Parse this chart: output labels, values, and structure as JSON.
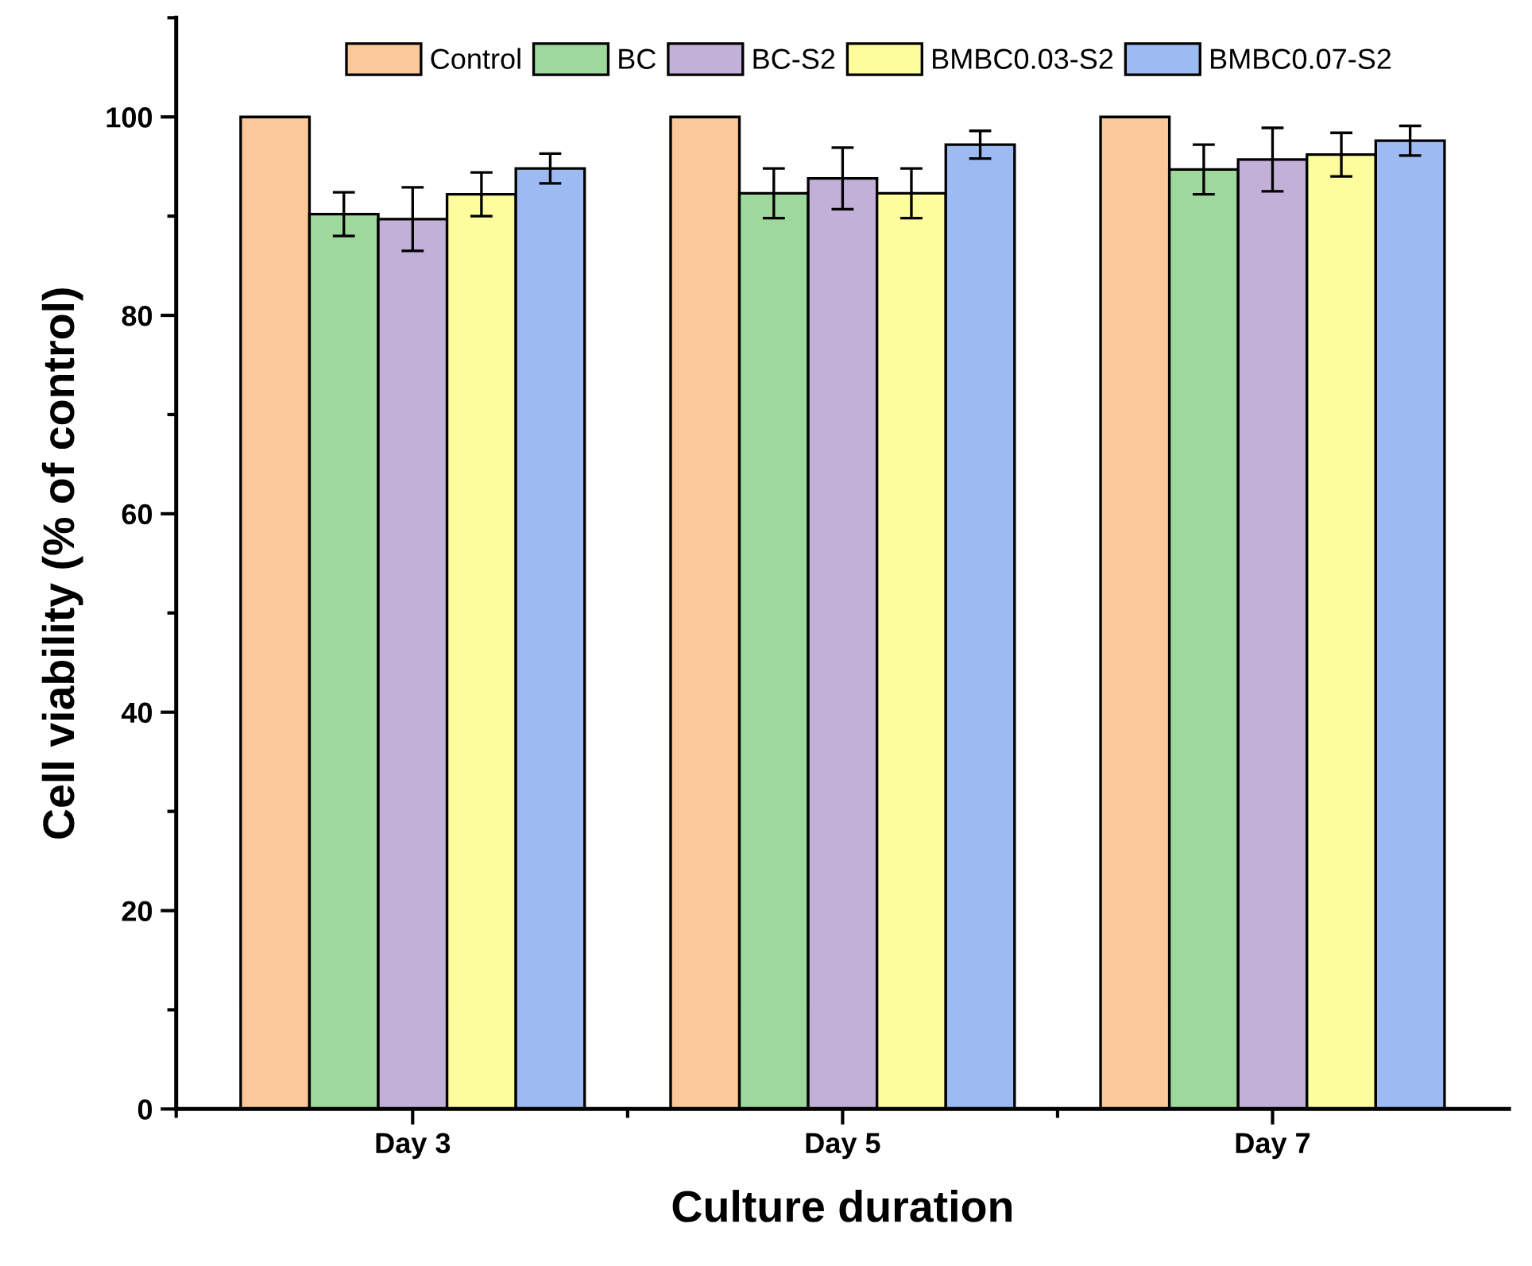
{
  "chart_data": {
    "type": "bar",
    "xlabel": "Culture duration",
    "ylabel": "Cell viability (% of control)",
    "categories": [
      "Day 3",
      "Day 5",
      "Day 7"
    ],
    "series": [
      {
        "name": "Control",
        "color": "#fbc899",
        "values": [
          100,
          100,
          100
        ]
      },
      {
        "name": "BC",
        "color": "#9fd89d",
        "values": [
          90.2,
          92.3,
          94.7
        ],
        "errors": [
          2.2,
          2.5,
          2.5
        ]
      },
      {
        "name": "BC-S2",
        "color": "#c3b0d8",
        "values": [
          89.7,
          93.8,
          95.7
        ],
        "errors": [
          3.2,
          3.1,
          3.2
        ]
      },
      {
        "name": "BMBC0.03-S2",
        "color": "#fefd9e",
        "values": [
          92.2,
          92.3,
          96.2
        ],
        "errors": [
          2.2,
          2.5,
          2.2
        ]
      },
      {
        "name": "BMBC0.07-S2",
        "color": "#9dbbf2",
        "values": [
          94.8,
          97.2,
          97.6
        ],
        "errors": [
          1.5,
          1.4,
          1.5
        ]
      }
    ],
    "ylim": [
      0,
      110
    ],
    "yticks": [
      0,
      20,
      40,
      60,
      80,
      100
    ],
    "grid": false,
    "legend": "top"
  }
}
